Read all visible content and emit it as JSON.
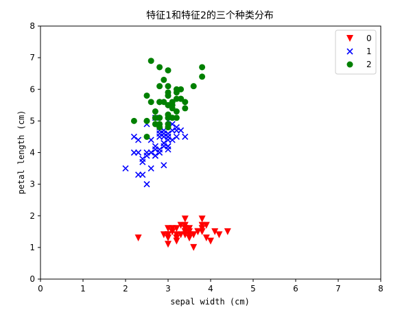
{
  "chart_data": {
    "type": "scatter",
    "title": "特征1和特征2的三个种类分布",
    "xlabel": "sepal width (cm)",
    "ylabel": "petal length (cm)",
    "xlim": [
      0,
      8
    ],
    "ylim": [
      0,
      8
    ],
    "xticks": [
      "0",
      "1",
      "2",
      "3",
      "4",
      "5",
      "6",
      "7",
      "8"
    ],
    "yticks": [
      "0",
      "1",
      "2",
      "3",
      "4",
      "5",
      "6",
      "7",
      "8"
    ],
    "grid": false,
    "legend_position": "top-right",
    "series": [
      {
        "name": "0",
        "marker": "triangle-down",
        "color": "#ff0000",
        "points": [
          [
            3.5,
            1.4
          ],
          [
            3.0,
            1.4
          ],
          [
            3.2,
            1.3
          ],
          [
            3.1,
            1.5
          ],
          [
            3.6,
            1.4
          ],
          [
            3.9,
            1.7
          ],
          [
            3.4,
            1.4
          ],
          [
            3.4,
            1.5
          ],
          [
            2.9,
            1.4
          ],
          [
            3.1,
            1.5
          ],
          [
            3.7,
            1.5
          ],
          [
            3.4,
            1.6
          ],
          [
            3.0,
            1.4
          ],
          [
            3.0,
            1.1
          ],
          [
            4.0,
            1.2
          ],
          [
            4.4,
            1.5
          ],
          [
            3.9,
            1.3
          ],
          [
            3.5,
            1.4
          ],
          [
            3.8,
            1.7
          ],
          [
            3.8,
            1.5
          ],
          [
            3.4,
            1.7
          ],
          [
            3.7,
            1.5
          ],
          [
            3.6,
            1.0
          ],
          [
            3.3,
            1.7
          ],
          [
            3.4,
            1.9
          ],
          [
            3.0,
            1.6
          ],
          [
            3.4,
            1.6
          ],
          [
            3.5,
            1.5
          ],
          [
            3.4,
            1.4
          ],
          [
            3.2,
            1.6
          ],
          [
            3.1,
            1.6
          ],
          [
            3.4,
            1.5
          ],
          [
            4.1,
            1.5
          ],
          [
            4.2,
            1.4
          ],
          [
            3.1,
            1.5
          ],
          [
            3.2,
            1.2
          ],
          [
            3.5,
            1.3
          ],
          [
            3.6,
            1.4
          ],
          [
            3.0,
            1.3
          ],
          [
            3.4,
            1.5
          ],
          [
            3.5,
            1.3
          ],
          [
            2.3,
            1.3
          ],
          [
            3.2,
            1.3
          ],
          [
            3.5,
            1.6
          ],
          [
            3.8,
            1.9
          ],
          [
            3.0,
            1.4
          ],
          [
            3.8,
            1.6
          ],
          [
            3.2,
            1.4
          ],
          [
            3.7,
            1.5
          ],
          [
            3.3,
            1.4
          ]
        ]
      },
      {
        "name": "1",
        "marker": "x",
        "color": "#0000ff",
        "points": [
          [
            3.2,
            4.7
          ],
          [
            3.2,
            4.5
          ],
          [
            3.1,
            4.9
          ],
          [
            2.3,
            4.0
          ],
          [
            2.8,
            4.6
          ],
          [
            2.8,
            4.5
          ],
          [
            3.3,
            4.7
          ],
          [
            2.4,
            3.3
          ],
          [
            2.9,
            4.6
          ],
          [
            2.7,
            3.9
          ],
          [
            2.0,
            3.5
          ],
          [
            3.0,
            4.2
          ],
          [
            2.2,
            4.0
          ],
          [
            2.9,
            4.7
          ],
          [
            2.9,
            3.6
          ],
          [
            3.1,
            4.4
          ],
          [
            3.0,
            4.5
          ],
          [
            2.7,
            4.1
          ],
          [
            2.2,
            4.5
          ],
          [
            2.5,
            3.9
          ],
          [
            3.2,
            4.8
          ],
          [
            2.8,
            4.0
          ],
          [
            2.5,
            4.9
          ],
          [
            2.8,
            4.7
          ],
          [
            2.9,
            4.3
          ],
          [
            3.0,
            4.4
          ],
          [
            2.8,
            4.8
          ],
          [
            3.0,
            5.0
          ],
          [
            2.9,
            4.5
          ],
          [
            2.6,
            3.5
          ],
          [
            2.4,
            3.8
          ],
          [
            2.4,
            3.7
          ],
          [
            2.7,
            3.9
          ],
          [
            2.7,
            5.1
          ],
          [
            3.0,
            4.5
          ],
          [
            3.4,
            4.5
          ],
          [
            3.1,
            4.7
          ],
          [
            2.3,
            4.4
          ],
          [
            3.0,
            4.1
          ],
          [
            2.5,
            4.0
          ],
          [
            2.6,
            4.4
          ],
          [
            3.0,
            4.6
          ],
          [
            2.6,
            4.0
          ],
          [
            2.3,
            3.3
          ],
          [
            2.7,
            4.2
          ],
          [
            3.0,
            4.2
          ],
          [
            2.9,
            4.2
          ],
          [
            2.9,
            4.3
          ],
          [
            2.5,
            3.0
          ],
          [
            2.8,
            4.1
          ]
        ]
      },
      {
        "name": "2",
        "marker": "circle",
        "color": "#008000",
        "points": [
          [
            3.3,
            6.0
          ],
          [
            2.7,
            5.1
          ],
          [
            3.0,
            5.9
          ],
          [
            2.9,
            5.6
          ],
          [
            3.0,
            5.8
          ],
          [
            3.0,
            6.6
          ],
          [
            2.5,
            4.5
          ],
          [
            2.9,
            6.3
          ],
          [
            2.5,
            5.8
          ],
          [
            3.6,
            6.1
          ],
          [
            3.2,
            5.1
          ],
          [
            2.7,
            5.3
          ],
          [
            3.0,
            5.5
          ],
          [
            2.5,
            5.0
          ],
          [
            2.8,
            5.1
          ],
          [
            3.2,
            5.3
          ],
          [
            3.0,
            5.5
          ],
          [
            3.8,
            6.7
          ],
          [
            2.6,
            6.9
          ],
          [
            2.2,
            5.0
          ],
          [
            3.2,
            5.7
          ],
          [
            2.8,
            4.9
          ],
          [
            2.8,
            6.7
          ],
          [
            2.7,
            4.9
          ],
          [
            3.3,
            5.7
          ],
          [
            3.2,
            6.0
          ],
          [
            2.8,
            4.8
          ],
          [
            3.0,
            4.9
          ],
          [
            2.8,
            5.6
          ],
          [
            3.0,
            5.8
          ],
          [
            2.8,
            6.1
          ],
          [
            3.8,
            6.4
          ],
          [
            2.8,
            5.6
          ],
          [
            2.8,
            5.1
          ],
          [
            2.6,
            5.6
          ],
          [
            3.0,
            6.1
          ],
          [
            3.4,
            5.6
          ],
          [
            3.1,
            5.5
          ],
          [
            3.0,
            4.8
          ],
          [
            3.1,
            5.4
          ],
          [
            3.1,
            5.6
          ],
          [
            3.1,
            5.1
          ],
          [
            2.7,
            5.1
          ],
          [
            3.2,
            5.9
          ],
          [
            3.3,
            5.7
          ],
          [
            3.0,
            5.2
          ],
          [
            2.5,
            5.0
          ],
          [
            3.0,
            5.2
          ],
          [
            3.4,
            5.4
          ],
          [
            3.0,
            5.1
          ]
        ]
      }
    ]
  }
}
